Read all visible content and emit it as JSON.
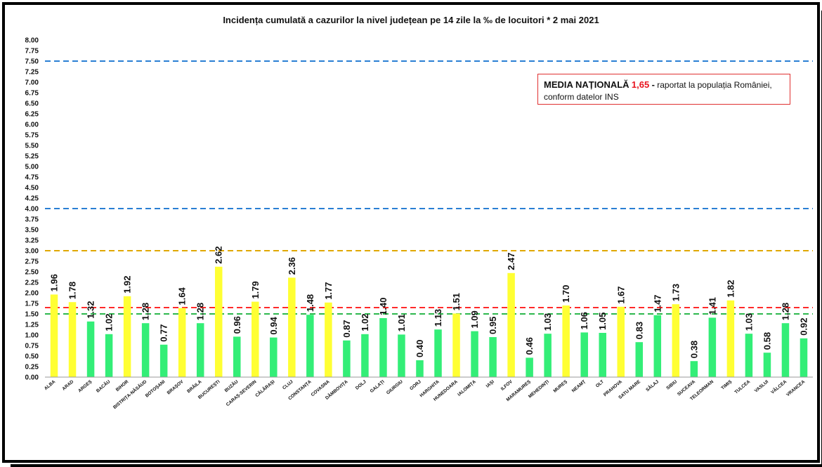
{
  "chart_data": {
    "type": "bar",
    "title": "Incidența cumulată a cazurilor la nivel județean pe 14 zile la ‰ de locuitori *   2 mai 2021",
    "xlabel": "",
    "ylabel": "",
    "ylim": [
      0,
      8
    ],
    "ytick_step": 0.25,
    "categories": [
      "ALBA",
      "ARAD",
      "ARGEȘ",
      "BACĂU",
      "BIHOR",
      "BISTRIȚA-NĂSĂUD",
      "BOTOȘANI",
      "BRAȘOV",
      "BRĂILA",
      "BUCUREȘTI",
      "BUZĂU",
      "CARAȘ-SEVERIN",
      "CĂLĂRAȘI",
      "CLUJ",
      "CONSTANȚA",
      "COVASNA",
      "DÂMBOVIȚA",
      "DOLJ",
      "GALAȚI",
      "GIURGIU",
      "GORJ",
      "HARGHITA",
      "HUNEDOARA",
      "IALOMIȚA",
      "IAȘI",
      "ILFOV",
      "MARAMUREȘ",
      "MEHEDINȚI",
      "MUREȘ",
      "NEAMȚ",
      "OLT",
      "PRAHOVA",
      "SATU MARE",
      "SĂLAJ",
      "SIBIU",
      "SUCEAVA",
      "TELEORMAN",
      "TIMIȘ",
      "TULCEA",
      "VASLUI",
      "VÂLCEA",
      "VRANCEA"
    ],
    "values": [
      1.96,
      1.78,
      1.32,
      1.02,
      1.92,
      1.28,
      0.77,
      1.64,
      1.28,
      2.62,
      0.96,
      1.79,
      0.94,
      2.36,
      1.48,
      1.77,
      0.87,
      1.02,
      1.4,
      1.01,
      0.4,
      1.13,
      1.51,
      1.09,
      0.95,
      2.47,
      0.46,
      1.03,
      1.7,
      1.06,
      1.05,
      1.67,
      0.83,
      1.47,
      1.73,
      0.38,
      1.41,
      1.82,
      1.03,
      0.58,
      1.28,
      0.92
    ],
    "value_labels": [
      "1.96",
      "1.78",
      "1.32",
      "1.02",
      "1.92",
      "1.28",
      "0.77",
      "1.64",
      "1.28",
      "2.62",
      "0.96",
      "1.79",
      "0.94",
      "2.36",
      "1.48",
      "1.77",
      "0.87",
      "1.02",
      "1.40",
      "1.01",
      "0.40",
      "1.13",
      "1.51",
      "1.09",
      "0.95",
      "2.47",
      "0.46",
      "1.03",
      "1.70",
      "1.06",
      "1.05",
      "1.67",
      "0.83",
      "1.47",
      "1.73",
      "0.38",
      "1.41",
      "1.82",
      "1.03",
      "0.58",
      "1.28",
      "0.92"
    ],
    "bar_colors": {
      "yellow": "#ffff33",
      "green": "#33ee77"
    },
    "yellow_categories": [
      "ALBA",
      "ARAD",
      "BIHOR",
      "BRAȘOV",
      "BUCUREȘTI",
      "CARAȘ-SEVERIN",
      "CLUJ",
      "COVASNA",
      "HUNEDOARA",
      "ILFOV",
      "MUREȘ",
      "PRAHOVA",
      "SIBIU",
      "TIMIȘ"
    ],
    "reference_lines": [
      {
        "value": 7.5,
        "color": "#2a7fd4"
      },
      {
        "value": 4.0,
        "color": "#2a7fd4"
      },
      {
        "value": 3.0,
        "color": "#e0a800"
      },
      {
        "value": 1.65,
        "color": "#ff2a2a"
      },
      {
        "value": 1.5,
        "color": "#2db84d"
      }
    ],
    "grid": false,
    "legend_placement": "top-right"
  },
  "legend": {
    "lead": "MEDIA NAȚIONALĂ",
    "value": "1,65",
    "dash": "-",
    "text1": "raportat la populația României,",
    "text2": "conform datelor INS"
  }
}
